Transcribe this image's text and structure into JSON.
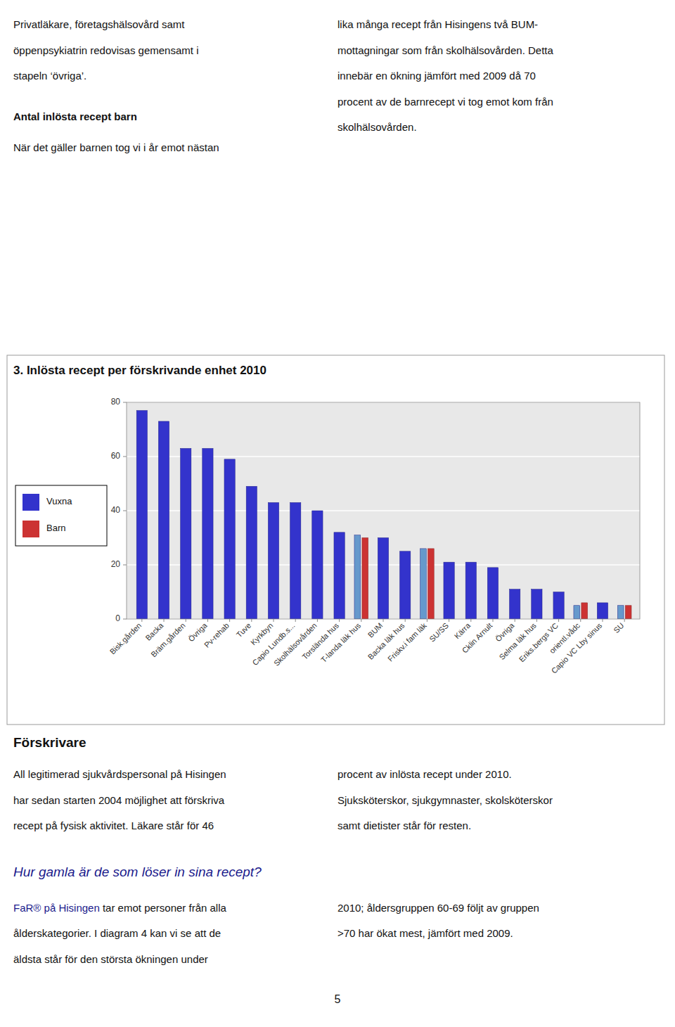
{
  "chart_data": {
    "type": "bar",
    "title": "3. Inlösta recept per förskrivande enhet 2010",
    "categories": [
      "Bisk.gården",
      "Backa",
      "Bräm.gården",
      "Övriga",
      "Pv-rehab",
      "Tuve",
      "Kyrkbyn",
      "Capio Lundb.s...",
      "Skolhälsovården",
      "Torslända hus",
      "T-landa läk hus",
      "BUM",
      "Backa läk hus",
      "Friskv.i fam läk",
      "SU/SS",
      "Kärra",
      "Cklin Arnult",
      "Övriga",
      "Selma läk hus",
      "Eriks.bergs VC",
      "orientl.vådc",
      "Capio VC Lby sinus",
      "SU"
    ],
    "series": [
      {
        "name": "Vuxna",
        "color": "#3333cc",
        "colors": [
          "#3333cc",
          "#3333cc",
          "#3333cc",
          "#3333cc",
          "#3333cc",
          "#3333cc",
          "#3333cc",
          "#3333cc",
          "#3333cc",
          "#3333cc",
          "#6699cc",
          "#3333cc",
          "#3333cc",
          "#6699cc",
          "#3333cc",
          "#3333cc",
          "#3333cc",
          "#3333cc",
          "#3333cc",
          "#3333cc",
          "#6699cc",
          "#3333cc",
          "#6699cc"
        ],
        "values": [
          77,
          73,
          63,
          63,
          59,
          49,
          43,
          43,
          40,
          32,
          31,
          30,
          25,
          26,
          21,
          21,
          19,
          11,
          11,
          10,
          5,
          6,
          5
        ]
      },
      {
        "name": "Barn",
        "color": "#cc3333",
        "values": [
          0,
          0,
          0,
          0,
          0,
          0,
          0,
          0,
          0,
          0,
          30,
          0,
          0,
          26,
          0,
          0,
          0,
          0,
          0,
          0,
          6,
          0,
          5
        ]
      }
    ],
    "ylim": [
      0,
      80
    ],
    "yticks": [
      0,
      20,
      40,
      60,
      80
    ],
    "grid": true,
    "legend": "left",
    "annotations": [
      "Privatläkare, företagshälsovård samt",
      "öppenpsykiatrin redovisas gemensamt i",
      "stapeln ‘övriga’.",
      "Antal inlösta recept barn",
      "När det gäller barnen tog vi i år emot nästan",
      "lika många recept från Hisingens två BUM-",
      "mottagningar som från skolhälsovården. Detta",
      "innebär en ökning jämfört med 2009 då 70",
      "procent av de barnrecept vi tog emot kom från",
      "skolhälsovården.",
      "Förskrivare",
      "All legitimerad sjukvårdspersonal på Hisingen",
      "har sedan starten 2004 möjlighet att förskriva",
      "recept på fysisk aktivitet. Läkare står för 46",
      "procent av inlösta recept under 2010.",
      "Sjuksköterskor, sjukgymnaster, skolsköterskor",
      "samt dietister står för resten.",
      "Hur gamla är de som löser in sina recept?",
      "FaR® på Hisingen tar emot personer från alla",
      "FaR® på Hisingen",
      "ålderskategorier. I diagram 4 kan vi se att de",
      "äldsta står för den största ökningen under",
      "2010; åldersgruppen 60-69 följt av gruppen",
      ">70 har ökat mest, jämfört med 2009.",
      "5"
    ]
  }
}
